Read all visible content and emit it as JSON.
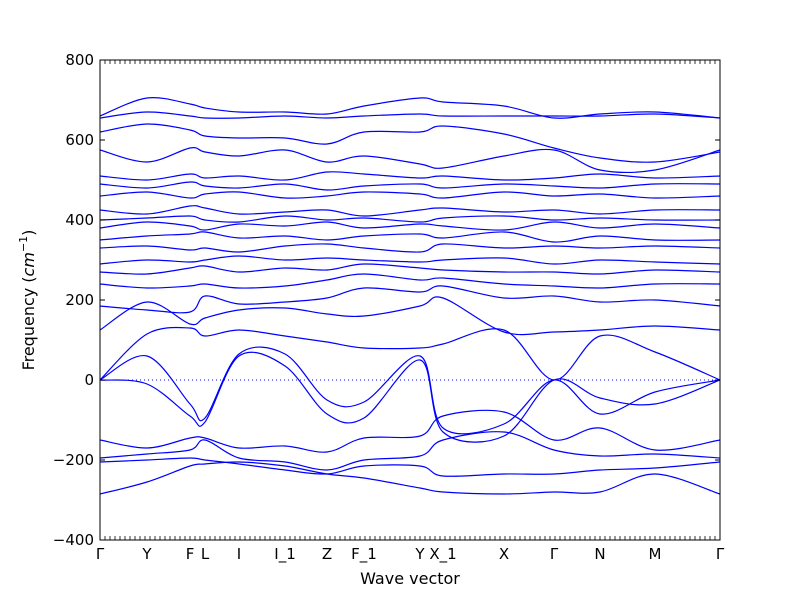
{
  "chart_data": {
    "type": "line",
    "title": "",
    "xlabel": "Wave vector",
    "ylabel": "Frequency",
    "ylabel_unit_base": "cm",
    "ylabel_unit_exp": "−1",
    "ylim": [
      -400,
      800
    ],
    "yticks": [
      -400,
      -200,
      0,
      200,
      400,
      600,
      800
    ],
    "zero_line": "dotted",
    "grid": false,
    "legend": "none",
    "line_color": "#0000ff",
    "high_symmetry_points": [
      {
        "label": "Γ",
        "x": 0.0
      },
      {
        "label": "Y",
        "x": 0.0758
      },
      {
        "label": "F",
        "x": 0.1452
      },
      {
        "label": "L",
        "x": 0.1694
      },
      {
        "label": "I",
        "x": 0.2242
      },
      {
        "label": "I_1",
        "x": 0.2984
      },
      {
        "label": "Z",
        "x": 0.3661
      },
      {
        "label": "F_1",
        "x": 0.4258
      },
      {
        "label": "Y",
        "x": 0.5161
      },
      {
        "label": "X_1",
        "x": 0.5532
      },
      {
        "label": "X",
        "x": 0.6516
      },
      {
        "label": "Γ",
        "x": 0.7323
      },
      {
        "label": "N",
        "x": 0.8065
      },
      {
        "label": "M",
        "x": 0.8952
      },
      {
        "label": "Γ",
        "x": 1.0
      }
    ],
    "series": [
      {
        "x": [
          0,
          0.0758,
          0.1452,
          0.1694,
          0.2242,
          0.2984,
          0.3661,
          0.4258,
          0.5161,
          0.5532,
          0.6516,
          0.7323,
          0.8065,
          0.8952,
          1.0
        ],
        "values": [
          -285,
          -255,
          -215,
          -210,
          -205,
          -215,
          -235,
          -245,
          -270,
          -280,
          -285,
          -280,
          -280,
          -235,
          -285
        ]
      },
      {
        "x": [
          0,
          0.0758,
          0.1452,
          0.1694,
          0.2242,
          0.2984,
          0.3661,
          0.4258,
          0.5161,
          0.5532,
          0.6516,
          0.7323,
          0.8065,
          0.8952,
          1.0
        ],
        "values": [
          -205,
          -200,
          -195,
          -200,
          -210,
          -225,
          -235,
          -215,
          -215,
          -240,
          -235,
          -235,
          -225,
          -220,
          -205
        ]
      },
      {
        "x": [
          0,
          0.0758,
          0.1452,
          0.1694,
          0.2242,
          0.2984,
          0.3661,
          0.4258,
          0.5161,
          0.5532,
          0.6516,
          0.7323,
          0.8065,
          0.8952,
          1.0
        ],
        "values": [
          -195,
          -185,
          -175,
          -150,
          -195,
          -205,
          -225,
          -200,
          -190,
          -150,
          -130,
          -175,
          -190,
          -185,
          -195
        ]
      },
      {
        "x": [
          0,
          0.0758,
          0.1452,
          0.1694,
          0.2242,
          0.2984,
          0.3661,
          0.4258,
          0.5161,
          0.5532,
          0.6516,
          0.7323,
          0.8065,
          0.8952,
          1.0
        ],
        "values": [
          -150,
          -170,
          -145,
          -145,
          -170,
          -165,
          -180,
          -145,
          -140,
          -90,
          -80,
          -150,
          -120,
          -175,
          -150
        ]
      },
      {
        "x": [
          0,
          0.0758,
          0.1452,
          0.1694,
          0.2242,
          0.2984,
          0.3661,
          0.4258,
          0.5161,
          0.5532,
          0.6516,
          0.7323,
          0.8065,
          0.8952,
          1.0
        ],
        "values": [
          0,
          60,
          -60,
          -95,
          65,
          65,
          -50,
          -55,
          60,
          -120,
          -110,
          0,
          -85,
          -30,
          0
        ]
      },
      {
        "x": [
          0,
          0.0758,
          0.1452,
          0.1694,
          0.2242,
          0.2984,
          0.3661,
          0.4258,
          0.5161,
          0.5532,
          0.6516,
          0.7323,
          0.8065,
          0.8952,
          1.0
        ],
        "values": [
          0,
          -10,
          -90,
          -105,
          60,
          35,
          -85,
          -95,
          50,
          -130,
          -140,
          0,
          -45,
          -60,
          0
        ]
      },
      {
        "x": [
          0,
          0.0758,
          0.1452,
          0.1694,
          0.2242,
          0.2984,
          0.3661,
          0.4258,
          0.5161,
          0.5532,
          0.6516,
          0.7323,
          0.8065,
          0.8952,
          1.0
        ],
        "values": [
          0,
          115,
          130,
          110,
          125,
          110,
          95,
          80,
          80,
          90,
          125,
          0,
          110,
          70,
          0
        ]
      },
      {
        "x": [
          0,
          0.0758,
          0.1452,
          0.1694,
          0.2242,
          0.2984,
          0.3661,
          0.4258,
          0.5161,
          0.5532,
          0.6516,
          0.7323,
          0.8065,
          0.8952,
          1.0
        ],
        "values": [
          125,
          195,
          140,
          155,
          175,
          180,
          165,
          160,
          185,
          205,
          120,
          120,
          125,
          135,
          125
        ]
      },
      {
        "x": [
          0,
          0.0758,
          0.1452,
          0.1694,
          0.2242,
          0.2984,
          0.3661,
          0.4258,
          0.5161,
          0.5532,
          0.6516,
          0.7323,
          0.8065,
          0.8952,
          1.0
        ],
        "values": [
          185,
          175,
          170,
          210,
          190,
          195,
          205,
          230,
          220,
          235,
          205,
          210,
          195,
          200,
          185
        ]
      },
      {
        "x": [
          0,
          0.0758,
          0.1452,
          0.1694,
          0.2242,
          0.2984,
          0.3661,
          0.4258,
          0.5161,
          0.5532,
          0.6516,
          0.7323,
          0.8065,
          0.8952,
          1.0
        ],
        "values": [
          240,
          230,
          235,
          240,
          230,
          235,
          250,
          265,
          250,
          255,
          240,
          235,
          230,
          240,
          240
        ]
      },
      {
        "x": [
          0,
          0.0758,
          0.1452,
          0.1694,
          0.2242,
          0.2984,
          0.3661,
          0.4258,
          0.5161,
          0.5532,
          0.6516,
          0.7323,
          0.8065,
          0.8952,
          1.0
        ],
        "values": [
          270,
          265,
          280,
          285,
          270,
          280,
          275,
          290,
          280,
          275,
          270,
          270,
          265,
          275,
          270
        ]
      },
      {
        "x": [
          0,
          0.0758,
          0.1452,
          0.1694,
          0.2242,
          0.2984,
          0.3661,
          0.4258,
          0.5161,
          0.5532,
          0.6516,
          0.7323,
          0.8065,
          0.8952,
          1.0
        ],
        "values": [
          290,
          300,
          295,
          300,
          310,
          300,
          305,
          300,
          295,
          300,
          305,
          290,
          300,
          295,
          290
        ]
      },
      {
        "x": [
          0,
          0.0758,
          0.1452,
          0.1694,
          0.2242,
          0.2984,
          0.3661,
          0.4258,
          0.5161,
          0.5532,
          0.6516,
          0.7323,
          0.8065,
          0.8952,
          1.0
        ],
        "values": [
          330,
          335,
          325,
          330,
          320,
          335,
          340,
          330,
          320,
          340,
          330,
          335,
          330,
          335,
          330
        ]
      },
      {
        "x": [
          0,
          0.0758,
          0.1452,
          0.1694,
          0.2242,
          0.2984,
          0.3661,
          0.4258,
          0.5161,
          0.5532,
          0.6516,
          0.7323,
          0.8065,
          0.8952,
          1.0
        ],
        "values": [
          350,
          360,
          365,
          370,
          355,
          360,
          350,
          360,
          365,
          355,
          370,
          345,
          360,
          350,
          350
        ]
      },
      {
        "x": [
          0,
          0.0758,
          0.1452,
          0.1694,
          0.2242,
          0.2984,
          0.3661,
          0.4258,
          0.5161,
          0.5532,
          0.6516,
          0.7323,
          0.8065,
          0.8952,
          1.0
        ],
        "values": [
          380,
          395,
          385,
          375,
          390,
          385,
          395,
          380,
          390,
          385,
          375,
          395,
          380,
          390,
          380
        ]
      },
      {
        "x": [
          0,
          0.0758,
          0.1452,
          0.1694,
          0.2242,
          0.2984,
          0.3661,
          0.4258,
          0.5161,
          0.5532,
          0.6516,
          0.7323,
          0.8065,
          0.8952,
          1.0
        ],
        "values": [
          400,
          405,
          410,
          400,
          395,
          410,
          400,
          405,
          395,
          405,
          410,
          400,
          405,
          400,
          400
        ]
      },
      {
        "x": [
          0,
          0.0758,
          0.1452,
          0.1694,
          0.2242,
          0.2984,
          0.3661,
          0.4258,
          0.5161,
          0.5532,
          0.6516,
          0.7323,
          0.8065,
          0.8952,
          1.0
        ],
        "values": [
          425,
          415,
          435,
          430,
          415,
          420,
          425,
          410,
          425,
          430,
          420,
          425,
          415,
          425,
          425
        ]
      },
      {
        "x": [
          0,
          0.0758,
          0.1452,
          0.1694,
          0.2242,
          0.2984,
          0.3661,
          0.4258,
          0.5161,
          0.5532,
          0.6516,
          0.7323,
          0.8065,
          0.8952,
          1.0
        ],
        "values": [
          460,
          470,
          455,
          465,
          470,
          455,
          460,
          470,
          465,
          455,
          470,
          460,
          465,
          455,
          460
        ]
      },
      {
        "x": [
          0,
          0.0758,
          0.1452,
          0.1694,
          0.2242,
          0.2984,
          0.3661,
          0.4258,
          0.5161,
          0.5532,
          0.6516,
          0.7323,
          0.8065,
          0.8952,
          1.0
        ],
        "values": [
          490,
          480,
          495,
          485,
          480,
          490,
          475,
          485,
          490,
          480,
          490,
          485,
          480,
          490,
          490
        ]
      },
      {
        "x": [
          0,
          0.0758,
          0.1452,
          0.1694,
          0.2242,
          0.2984,
          0.3661,
          0.4258,
          0.5161,
          0.5532,
          0.6516,
          0.7323,
          0.8065,
          0.8952,
          1.0
        ],
        "values": [
          510,
          500,
          515,
          505,
          510,
          500,
          520,
          515,
          505,
          510,
          500,
          505,
          515,
          505,
          510
        ]
      },
      {
        "x": [
          0,
          0.0758,
          0.1452,
          0.1694,
          0.2242,
          0.2984,
          0.3661,
          0.4258,
          0.5161,
          0.5532,
          0.6516,
          0.7323,
          0.8065,
          0.8952,
          1.0
        ],
        "values": [
          575,
          545,
          580,
          570,
          560,
          575,
          545,
          560,
          540,
          530,
          560,
          575,
          525,
          525,
          575
        ]
      },
      {
        "x": [
          0,
          0.0758,
          0.1452,
          0.1694,
          0.2242,
          0.2984,
          0.3661,
          0.4258,
          0.5161,
          0.5532,
          0.6516,
          0.7323,
          0.8065,
          0.8952,
          1.0
        ],
        "values": [
          620,
          640,
          625,
          610,
          605,
          605,
          590,
          620,
          620,
          635,
          615,
          580,
          555,
          545,
          570
        ]
      },
      {
        "x": [
          0,
          0.0758,
          0.1452,
          0.1694,
          0.2242,
          0.2984,
          0.3661,
          0.4258,
          0.5161,
          0.5532,
          0.6516,
          0.7323,
          0.8065,
          0.8952,
          1.0
        ],
        "values": [
          655,
          670,
          660,
          655,
          655,
          660,
          655,
          660,
          665,
          660,
          660,
          660,
          660,
          665,
          655
        ]
      },
      {
        "x": [
          0,
          0.0758,
          0.1452,
          0.1694,
          0.2242,
          0.2984,
          0.3661,
          0.4258,
          0.5161,
          0.5532,
          0.6516,
          0.7323,
          0.8065,
          0.8952,
          1.0
        ],
        "values": [
          660,
          705,
          690,
          680,
          670,
          670,
          665,
          685,
          705,
          695,
          685,
          655,
          665,
          670,
          655
        ]
      }
    ]
  }
}
